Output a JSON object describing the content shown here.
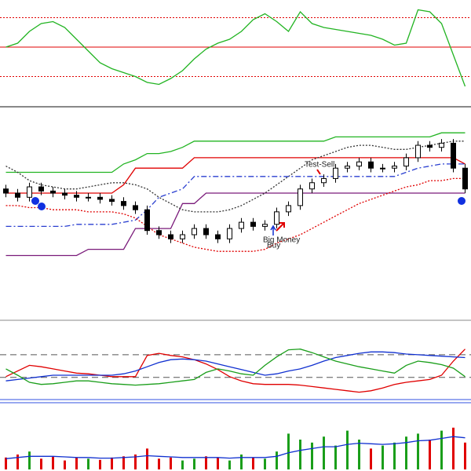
{
  "chart_data": [
    {
      "type": "line",
      "ylim": [
        0,
        100
      ],
      "series": [
        {
          "color": "#22b422",
          "values": [
            56,
            60,
            72,
            80,
            82,
            76,
            64,
            52,
            40,
            34,
            30,
            26,
            20,
            18,
            24,
            32,
            44,
            54,
            60,
            64,
            72,
            84,
            90,
            82,
            72,
            92,
            80,
            76,
            74,
            72,
            70,
            68,
            64,
            58,
            60,
            94,
            92,
            80,
            48,
            16
          ]
        }
      ],
      "levels": [
        {
          "value": 56,
          "color": "#e00000",
          "style": "solid"
        },
        {
          "value": 86,
          "color": "#e00000",
          "style": "dotted"
        },
        {
          "value": 26,
          "color": "#e00000",
          "style": "dotted"
        }
      ]
    },
    {
      "type": "candlestick",
      "ylim": [
        0,
        100
      ],
      "up_color": "#ffffff",
      "down_color": "#000000",
      "open": [
        62,
        60,
        58,
        63,
        61,
        60,
        59,
        58,
        58,
        57,
        56,
        54,
        52,
        42,
        40,
        38,
        40,
        43,
        40,
        38,
        43,
        46,
        44,
        45,
        51,
        54,
        62,
        65,
        67,
        72,
        73,
        75,
        72,
        72,
        73,
        77,
        83,
        82,
        84,
        72
      ],
      "high": [
        64,
        62,
        65,
        65,
        63,
        62,
        61,
        60,
        60,
        59,
        58,
        56,
        54,
        44,
        42,
        42,
        45,
        45,
        42,
        45,
        48,
        48,
        47,
        53,
        56,
        64,
        67,
        69,
        74,
        75,
        77,
        77,
        74,
        75,
        79,
        85,
        85,
        86,
        86,
        74
      ],
      "low": [
        58,
        56,
        56,
        59,
        58,
        57,
        56,
        56,
        55,
        54,
        52,
        50,
        40,
        38,
        36,
        36,
        38,
        38,
        36,
        36,
        41,
        42,
        42,
        43,
        49,
        52,
        60,
        63,
        65,
        70,
        71,
        70,
        70,
        70,
        71,
        75,
        80,
        80,
        70,
        60
      ],
      "close": [
        60,
        58,
        63,
        61,
        60,
        59,
        58,
        58,
        57,
        56,
        54,
        52,
        42,
        40,
        38,
        40,
        43,
        40,
        38,
        43,
        46,
        44,
        45,
        51,
        54,
        62,
        65,
        67,
        72,
        73,
        75,
        72,
        72,
        73,
        77,
        83,
        82,
        84,
        72,
        62
      ],
      "overlays": [
        {
          "color": "#22b422",
          "style": "solid",
          "values": [
            70,
            70,
            70,
            70,
            70,
            70,
            70,
            70,
            70,
            70,
            74,
            76,
            79,
            79,
            80,
            82,
            85,
            85,
            85,
            85,
            85,
            85,
            85,
            85,
            85,
            85,
            85,
            85,
            87,
            87,
            87,
            87,
            87,
            87,
            87,
            87,
            87,
            89,
            89,
            89
          ]
        },
        {
          "color": "#e00000",
          "style": "solid",
          "values": [
            60,
            60,
            60,
            60,
            60,
            60,
            60,
            60,
            60,
            60,
            64,
            72,
            72,
            72,
            72,
            72,
            77,
            77,
            77,
            77,
            77,
            77,
            77,
            77,
            77,
            77,
            77,
            77,
            77,
            77,
            77,
            77,
            77,
            77,
            77,
            77,
            77,
            77,
            77,
            74
          ]
        },
        {
          "color": "#7a1a7a",
          "style": "solid",
          "values": [
            30,
            30,
            30,
            30,
            30,
            30,
            30,
            33,
            33,
            33,
            33,
            43,
            43,
            43,
            43,
            55,
            55,
            60,
            60,
            60,
            60,
            60,
            60,
            60,
            60,
            60,
            60,
            60,
            60,
            60,
            60,
            60,
            60,
            60,
            60,
            60,
            60,
            60,
            60,
            60
          ]
        },
        {
          "color": "#333333",
          "style": "dotted",
          "values": [
            73,
            70,
            66,
            64,
            63,
            62,
            62,
            63,
            64,
            65,
            65,
            64,
            62,
            58,
            55,
            52,
            51,
            51,
            51,
            52,
            54,
            57,
            60,
            64,
            68,
            72,
            76,
            78,
            80,
            82,
            83,
            83,
            82,
            81,
            81,
            82,
            83,
            84,
            85,
            85
          ]
        },
        {
          "color": "#2a3fd0",
          "style": "dashdot",
          "values": [
            44,
            44,
            44,
            44,
            44,
            44,
            45,
            45,
            45,
            45,
            46,
            47,
            52,
            58,
            60,
            62,
            68,
            68,
            68,
            68,
            68,
            68,
            68,
            68,
            68,
            68,
            68,
            68,
            68,
            68,
            68,
            68,
            68,
            68,
            70,
            72,
            73,
            74,
            74,
            74
          ]
        },
        {
          "color": "#e00000",
          "style": "dotted",
          "values": [
            54,
            54,
            53,
            53,
            52,
            52,
            52,
            51,
            51,
            51,
            50,
            48,
            44,
            40,
            38,
            36,
            34,
            33,
            32,
            32,
            32,
            32,
            33,
            36,
            38,
            40,
            43,
            46,
            49,
            52,
            55,
            57,
            59,
            61,
            63,
            64,
            66,
            66,
            67,
            67
          ]
        }
      ],
      "annotations": [
        "Test-Sell",
        "Big Money",
        "Buy"
      ]
    },
    {
      "type": "line",
      "ylim": [
        0,
        100
      ],
      "series": [
        {
          "color": "#e00000",
          "values": [
            28,
            36,
            44,
            42,
            39,
            36,
            33,
            32,
            30,
            28,
            28,
            28,
            58,
            61,
            58,
            56,
            52,
            46,
            38,
            28,
            22,
            18,
            17,
            17,
            17,
            16,
            14,
            12,
            10,
            8,
            6,
            8,
            12,
            17,
            20,
            22,
            24,
            30,
            50,
            67
          ]
        },
        {
          "color": "#1030d0",
          "values": [
            22,
            24,
            26,
            28,
            30,
            30,
            30,
            30,
            30,
            30,
            32,
            36,
            42,
            48,
            52,
            53,
            52,
            50,
            46,
            42,
            38,
            34,
            30,
            32,
            36,
            39,
            44,
            50,
            55,
            58,
            61,
            63,
            63,
            62,
            60,
            59,
            58,
            57,
            56,
            55
          ]
        },
        {
          "color": "#1a9e1a",
          "values": [
            39,
            30,
            20,
            17,
            18,
            20,
            22,
            22,
            20,
            18,
            17,
            16,
            17,
            18,
            20,
            22,
            24,
            34,
            39,
            36,
            32,
            30,
            44,
            56,
            66,
            67,
            62,
            56,
            50,
            46,
            42,
            39,
            36,
            33,
            44,
            50,
            48,
            45,
            40,
            28
          ]
        }
      ],
      "levels": [
        {
          "value": 59,
          "color": "#555555",
          "style": "dashed"
        },
        {
          "value": 27,
          "color": "#555555",
          "style": "dashed"
        }
      ]
    },
    {
      "type": "bar",
      "ylim": [
        0,
        100
      ],
      "up_color": "#1a9e1a",
      "down_color": "#e00000",
      "values": [
        20,
        25,
        30,
        18,
        22,
        15,
        20,
        18,
        16,
        20,
        22,
        25,
        35,
        18,
        20,
        15,
        18,
        22,
        20,
        15,
        25,
        20,
        18,
        30,
        60,
        50,
        45,
        55,
        40,
        65,
        50,
        35,
        40,
        45,
        55,
        60,
        50,
        65,
        70,
        45
      ],
      "overlays": [
        {
          "color": "#1030d0",
          "style": "solid",
          "values": [
            18,
            20,
            22,
            22,
            22,
            21,
            20,
            20,
            19,
            19,
            20,
            21,
            23,
            22,
            21,
            20,
            20,
            20,
            20,
            19,
            20,
            20,
            20,
            22,
            28,
            32,
            35,
            38,
            38,
            42,
            44,
            43,
            42,
            43,
            45,
            48,
            49,
            52,
            55,
            53
          ]
        }
      ]
    }
  ]
}
